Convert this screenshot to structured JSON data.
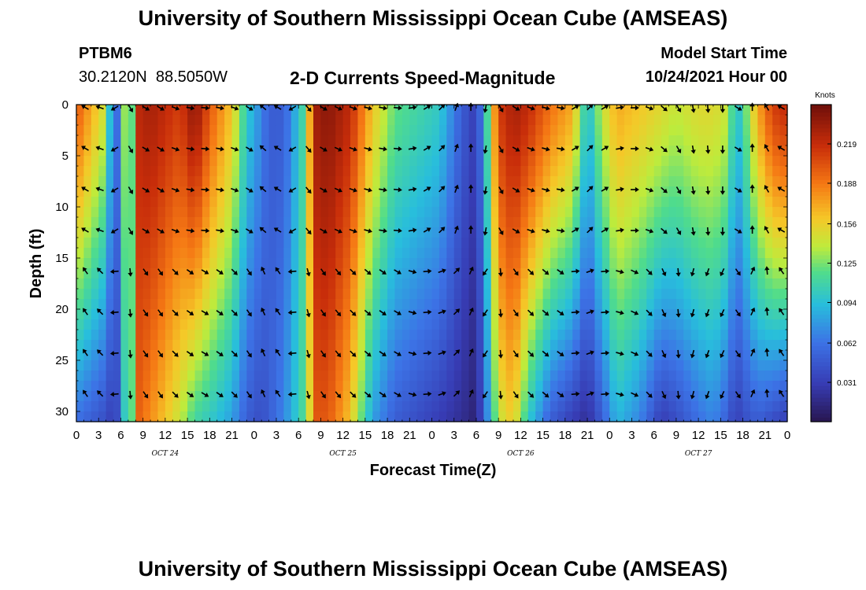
{
  "header": {
    "title": "University of Southern Mississippi Ocean Cube (AMSEAS)",
    "station_id": "PTBM6",
    "station_coords": "30.2120N  88.5050W",
    "plot_title": "2-D Currents Speed-Magnitude",
    "model_start_label": "Model Start Time",
    "model_start_value": "10/24/2021 Hour 00"
  },
  "footer": {
    "repeated_title": "University of Southern Mississippi Ocean Cube (AMSEAS)"
  },
  "chart_data": {
    "type": "heatmap",
    "title": "2-D Currents Speed-Magnitude",
    "xlabel": "Forecast Time(Z)",
    "ylabel": "Depth (ft)",
    "xlim": [
      0,
      96
    ],
    "ylim": [
      31,
      0
    ],
    "x_tick_labels": [
      "0",
      "3",
      "6",
      "9",
      "12",
      "15",
      "18",
      "21",
      "0",
      "3",
      "6",
      "9",
      "12",
      "15",
      "18",
      "21",
      "0",
      "3",
      "6",
      "9",
      "12",
      "15",
      "18",
      "21",
      "0",
      "3",
      "6",
      "9",
      "12",
      "15",
      "18",
      "21",
      "0"
    ],
    "y_ticks": [
      0,
      5,
      10,
      15,
      20,
      25,
      30
    ],
    "y_tick_labels": [
      "0",
      "5",
      "10",
      "15",
      "20",
      "25",
      "30"
    ],
    "day_labels": [
      {
        "label": "OCT 24",
        "hour": 12
      },
      {
        "label": "OCT 25",
        "hour": 36
      },
      {
        "label": "OCT 26",
        "hour": 60
      },
      {
        "label": "OCT 27",
        "hour": 84
      }
    ],
    "colorbar": {
      "unit": "Knots",
      "min": 0.0,
      "max": 0.25,
      "tick_labels": [
        "0.219",
        "0.188",
        "0.156",
        "0.125",
        "0.094",
        "0.062",
        "0.031"
      ],
      "tick_values": [
        0.219,
        0.188,
        0.156,
        0.125,
        0.094,
        0.062,
        0.031
      ]
    },
    "speed_profile_hours": [
      0,
      2,
      4,
      5,
      6,
      7,
      7.5,
      8,
      10,
      14,
      16,
      18,
      21,
      23,
      25,
      26,
      28,
      31,
      31.5,
      32,
      34,
      37,
      40,
      43,
      46,
      49,
      52,
      54,
      55,
      57,
      59,
      61,
      64,
      67,
      69,
      71,
      73,
      76,
      79,
      81,
      84,
      86,
      88,
      89,
      90,
      92,
      94,
      96
    ],
    "speed_surface_knots": [
      0.2,
      0.17,
      0.14,
      0.05,
      0.07,
      0.19,
      0.12,
      0.22,
      0.23,
      0.21,
      0.24,
      0.2,
      0.16,
      0.1,
      0.07,
      0.05,
      0.05,
      0.12,
      0.17,
      0.23,
      0.24,
      0.22,
      0.16,
      0.12,
      0.11,
      0.1,
      0.05,
      0.03,
      0.08,
      0.21,
      0.23,
      0.22,
      0.19,
      0.17,
      0.09,
      0.14,
      0.17,
      0.16,
      0.15,
      0.14,
      0.15,
      0.15,
      0.14,
      0.09,
      0.11,
      0.17,
      0.21,
      0.22
    ],
    "speed_bottom_knots": [
      0.06,
      0.05,
      0.04,
      0.03,
      0.05,
      0.15,
      0.12,
      0.2,
      0.18,
      0.14,
      0.11,
      0.1,
      0.08,
      0.05,
      0.04,
      0.05,
      0.07,
      0.12,
      0.15,
      0.2,
      0.2,
      0.16,
      0.08,
      0.05,
      0.04,
      0.03,
      0.02,
      0.01,
      0.05,
      0.14,
      0.16,
      0.1,
      0.05,
      0.03,
      0.02,
      0.05,
      0.09,
      0.07,
      0.03,
      0.04,
      0.06,
      0.07,
      0.05,
      0.03,
      0.04,
      0.05,
      0.04,
      0.03
    ],
    "arrow_depths_ft": [
      0,
      4,
      8,
      12,
      16,
      20,
      24,
      28
    ],
    "arrow_hours": [
      0,
      2,
      4,
      6,
      8,
      10,
      12,
      14,
      16,
      18,
      20,
      22,
      24,
      26,
      28,
      30,
      32,
      34,
      36,
      38,
      40,
      42,
      44,
      46,
      48,
      50,
      52,
      54,
      56,
      58,
      60,
      62,
      64,
      66,
      68,
      70,
      72,
      74,
      76,
      78,
      80,
      82,
      84,
      86,
      88,
      90,
      92,
      94
    ],
    "arrow_direction_deg": [
      300,
      290,
      240,
      150,
      120,
      120,
      110,
      100,
      95,
      100,
      110,
      120,
      310,
      300,
      240,
      140,
      120,
      115,
      110,
      105,
      100,
      95,
      80,
      60,
      45,
      20,
      0,
      190,
      150,
      120,
      110,
      105,
      100,
      60,
      45,
      60,
      80,
      90,
      110,
      130,
      150,
      170,
      175,
      180,
      120,
      0,
      330,
      300
    ]
  }
}
